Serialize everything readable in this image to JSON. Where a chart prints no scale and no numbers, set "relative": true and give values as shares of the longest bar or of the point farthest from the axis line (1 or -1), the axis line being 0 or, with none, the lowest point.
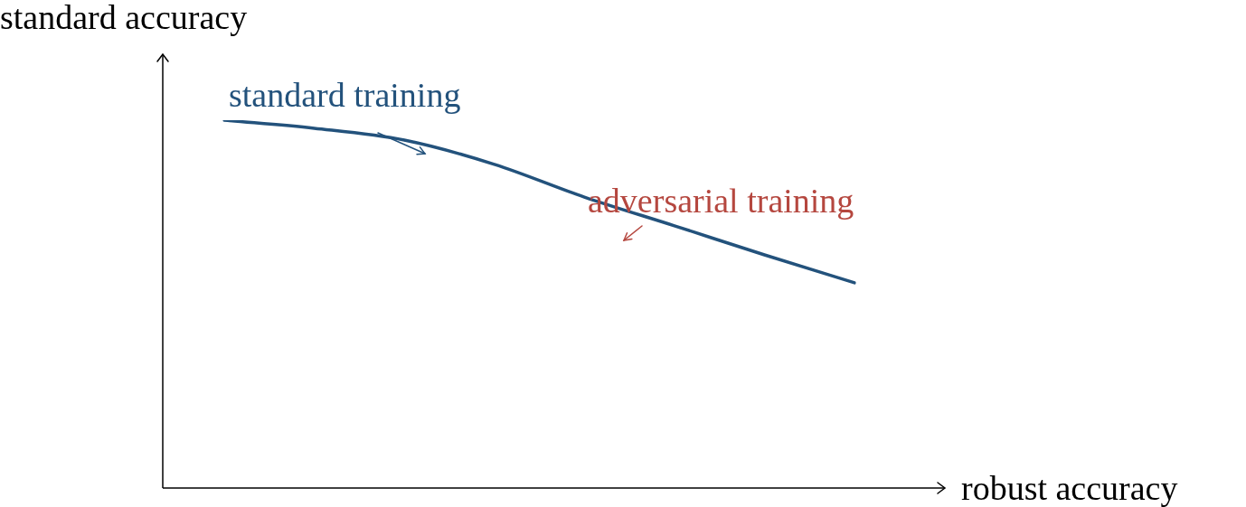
{
  "chart_data": {
    "type": "line",
    "relative": true,
    "xlabel": "robust accuracy",
    "ylabel": "standard accuracy",
    "categories": [
      null,
      null,
      null,
      null,
      null,
      null,
      null,
      null
    ],
    "series": [
      {
        "color": "#23527c",
        "values": [
          1,
          0.978,
          0.946,
          0.88,
          0.791,
          0.713,
          0.634,
          0.558
        ]
      }
    ],
    "annotations": [
      "standard training",
      "adversarial training"
    ],
    "legend": false,
    "marker": "none",
    "line_style": "solid"
  }
}
